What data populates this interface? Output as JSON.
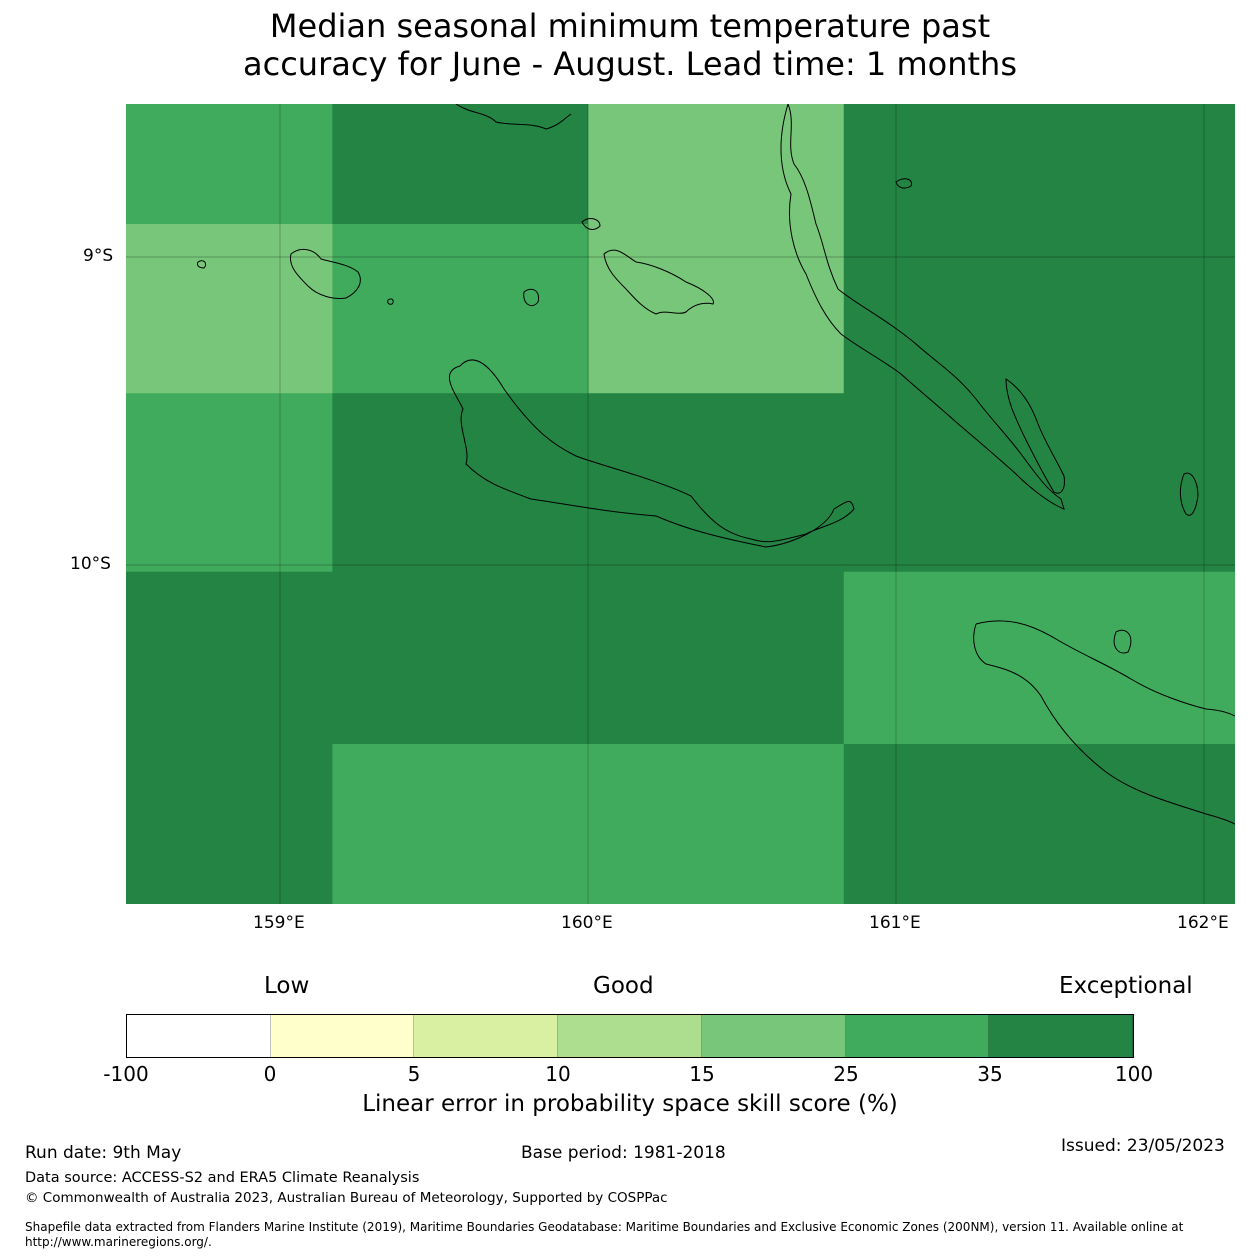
{
  "title": {
    "line1": "Median seasonal minimum temperature past",
    "line2": "accuracy for June - August. Lead time: 1 months"
  },
  "map": {
    "x_ticks": [
      "159°E",
      "160°E",
      "161°E",
      "162°E"
    ],
    "y_ticks": [
      "9°S",
      "10°S"
    ],
    "extent": {
      "lon": [
        158.5,
        162.1
      ],
      "lat": [
        -11.1,
        -8.5
      ]
    },
    "grid_cell_scores": [
      {
        "lon": [
          158.5,
          159.17
        ],
        "lat": [
          -8.89,
          -8.5
        ],
        "score": "25-35",
        "color": "#41ab5d"
      },
      {
        "lon": [
          159.17,
          160.0
        ],
        "lat": [
          -8.89,
          -8.5
        ],
        "score": "35-100",
        "color": "#238443"
      },
      {
        "lon": [
          160.0,
          160.83
        ],
        "lat": [
          -9.44,
          -8.5
        ],
        "score": "15-25",
        "color": "#78c679"
      },
      {
        "lon": [
          160.83,
          162.1
        ],
        "lat": [
          -10.02,
          -8.5
        ],
        "score": "35-100",
        "color": "#238443"
      },
      {
        "lon": [
          158.5,
          159.17
        ],
        "lat": [
          -9.44,
          -8.89
        ],
        "score": "15-25",
        "color": "#78c679"
      },
      {
        "lon": [
          159.17,
          160.0
        ],
        "lat": [
          -9.44,
          -8.89
        ],
        "score": "25-35",
        "color": "#41ab5d"
      },
      {
        "lon": [
          158.5,
          159.17
        ],
        "lat": [
          -10.02,
          -9.44
        ],
        "score": "25-35",
        "color": "#41ab5d"
      },
      {
        "lon": [
          159.17,
          160.83
        ],
        "lat": [
          -10.02,
          -9.44
        ],
        "score": "35-100",
        "color": "#238443"
      },
      {
        "lon": [
          158.5,
          160.83
        ],
        "lat": [
          -10.58,
          -10.02
        ],
        "score": "35-100",
        "color": "#238443"
      },
      {
        "lon": [
          160.83,
          162.1
        ],
        "lat": [
          -10.58,
          -10.02
        ],
        "score": "25-35",
        "color": "#41ab5d"
      },
      {
        "lon": [
          158.5,
          159.17
        ],
        "lat": [
          -11.1,
          -10.58
        ],
        "score": "35-100",
        "color": "#238443"
      },
      {
        "lon": [
          159.17,
          160.83
        ],
        "lat": [
          -11.1,
          -10.58
        ],
        "score": "25-35",
        "color": "#41ab5d"
      },
      {
        "lon": [
          160.83,
          162.1
        ],
        "lat": [
          -11.1,
          -10.58
        ],
        "score": "35-100",
        "color": "#238443"
      }
    ]
  },
  "colorbar": {
    "categories": {
      "low": "Low",
      "good": "Good",
      "exceptional": "Exceptional"
    },
    "ticks": [
      "-100",
      "0",
      "5",
      "10",
      "15",
      "25",
      "35",
      "100"
    ],
    "colors": [
      "#ffffff",
      "#ffffcc",
      "#d9f0a3",
      "#addd8e",
      "#78c679",
      "#41ab5d",
      "#238443"
    ],
    "label": "Linear error in probability space skill score (%)"
  },
  "footer": {
    "run_date": "Run date: 9th May",
    "base_period": "Base period: 1981-2018",
    "issued": "Issued: 23/05/2023",
    "data_source": "Data source: ACCESS-S2 and ERA5 Climate Reanalysis",
    "copyright": "© Commonwealth of Australia 2023, Australian Bureau of Meteorology, Supported by COSPPac",
    "shapefile_line1": "Shapefile data extracted from Flanders Marine Institute (2019), Maritime Boundaries Geodatabase: Maritime Boundaries and Exclusive Economic Zones (200NM), version 11. Available online at",
    "shapefile_line2": "http://www.marineregions.org/."
  }
}
